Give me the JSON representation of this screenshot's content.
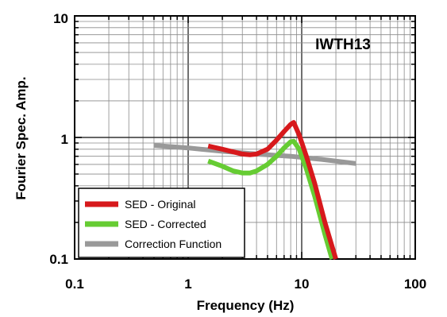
{
  "chart_data": {
    "type": "line",
    "title": "IWTH13",
    "xlabel": "Frequency (Hz)",
    "ylabel": "Fourier Spec. Amp.",
    "xscale": "log",
    "yscale": "log",
    "xlim": [
      0.1,
      100
    ],
    "ylim": [
      0.1,
      10
    ],
    "xticks": [
      "0.1",
      "1",
      "10",
      "100"
    ],
    "yticks": [
      "0.1",
      "1",
      "10"
    ],
    "grid": true,
    "legend_position": "bottom-left",
    "series": [
      {
        "name": "SED - Original",
        "color": "#d7191c",
        "x": [
          1.5,
          2.0,
          2.5,
          3.0,
          3.5,
          4.0,
          5.0,
          6.0,
          7.0,
          8.0,
          8.5,
          9.5,
          11.0,
          13.0,
          16.0,
          20.0
        ],
        "y": [
          0.85,
          0.8,
          0.76,
          0.73,
          0.72,
          0.73,
          0.8,
          0.95,
          1.12,
          1.28,
          1.33,
          1.05,
          0.7,
          0.42,
          0.2,
          0.1
        ]
      },
      {
        "name": "SED - Corrected",
        "color": "#66cc33",
        "x": [
          1.5,
          2.0,
          2.5,
          3.0,
          3.5,
          4.0,
          5.0,
          6.0,
          7.0,
          8.0,
          8.5,
          9.5,
          11.0,
          13.0,
          16.0,
          18.5
        ],
        "y": [
          0.64,
          0.58,
          0.53,
          0.51,
          0.51,
          0.53,
          0.6,
          0.7,
          0.82,
          0.92,
          0.93,
          0.8,
          0.55,
          0.33,
          0.16,
          0.1
        ]
      },
      {
        "name": "Correction Function",
        "color": "#999999",
        "x": [
          0.5,
          1.0,
          2.0,
          4.0,
          8.0,
          15.0,
          30.0
        ],
        "y": [
          0.86,
          0.82,
          0.77,
          0.73,
          0.7,
          0.66,
          0.61
        ]
      }
    ]
  }
}
